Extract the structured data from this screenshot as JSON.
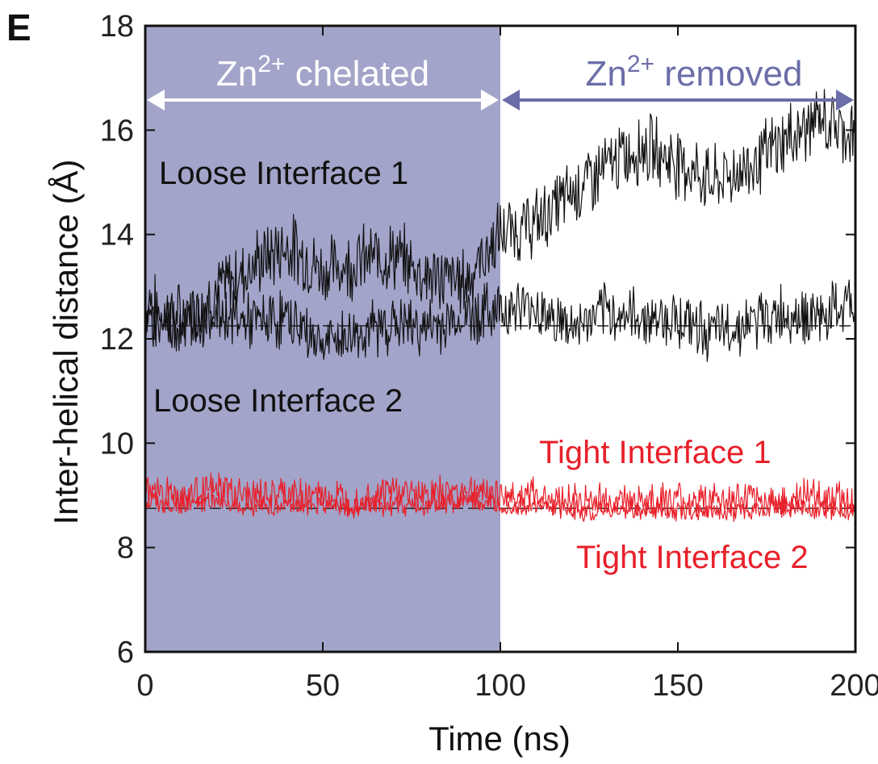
{
  "chart_data": {
    "type": "line",
    "panel_label": "E",
    "xlabel": "Time (ns)",
    "ylabel": "Inter-helical distance (Å)",
    "xlim": [
      0,
      200
    ],
    "ylim": [
      6,
      18
    ],
    "x_ticks": [
      "0",
      "50",
      "100",
      "150",
      "200"
    ],
    "y_ticks": [
      "6",
      "8",
      "10",
      "12",
      "14",
      "16",
      "18"
    ],
    "grid": false,
    "shaded_region": {
      "x": [
        0,
        100
      ],
      "color": "#a3a4c9"
    },
    "regions": [
      {
        "label_base": "Zn",
        "label_sup": "2+",
        "label_rest": " chelated",
        "x": [
          0,
          100
        ],
        "color": "#ffffff"
      },
      {
        "label_base": "Zn",
        "label_sup": "2+",
        "label_rest": " removed",
        "x": [
          100,
          200
        ],
        "color": "#6b6ea8"
      }
    ],
    "reference_lines": [
      {
        "y": 12.25,
        "color": "#222222",
        "style": "dashed"
      },
      {
        "y": 8.75,
        "color": "#222222",
        "style": "dashed"
      }
    ],
    "series": [
      {
        "name": "Loose Interface 1",
        "color": "#111111",
        "x": [
          0,
          10,
          20,
          30,
          40,
          50,
          60,
          70,
          80,
          90,
          100,
          110,
          120,
          130,
          140,
          150,
          160,
          170,
          180,
          190,
          200
        ],
        "values": [
          12.6,
          12.4,
          12.9,
          13.4,
          13.8,
          13.3,
          13.5,
          13.6,
          13.2,
          13.1,
          14.0,
          14.2,
          14.8,
          15.3,
          15.7,
          15.4,
          15.0,
          15.3,
          15.8,
          16.2,
          15.9
        ]
      },
      {
        "name": "Loose Interface 2",
        "color": "#111111",
        "x": [
          0,
          10,
          20,
          30,
          40,
          50,
          60,
          70,
          80,
          90,
          100,
          110,
          120,
          130,
          140,
          150,
          160,
          170,
          180,
          190,
          200
        ],
        "values": [
          12.4,
          12.3,
          12.5,
          12.3,
          12.4,
          11.9,
          12.1,
          12.3,
          12.2,
          12.4,
          12.6,
          12.6,
          12.2,
          12.5,
          12.4,
          12.4,
          12.1,
          12.3,
          12.5,
          12.4,
          12.7
        ]
      },
      {
        "name": "Tight Interface 1",
        "color": "#e8202a",
        "x": [
          0,
          10,
          20,
          30,
          40,
          50,
          60,
          70,
          80,
          90,
          100,
          110,
          120,
          130,
          140,
          150,
          160,
          170,
          180,
          190,
          200
        ],
        "values": [
          9.1,
          9.0,
          9.1,
          9.0,
          9.0,
          9.0,
          8.9,
          9.1,
          9.0,
          9.1,
          9.0,
          9.0,
          8.9,
          8.9,
          8.9,
          8.9,
          8.9,
          8.9,
          8.9,
          9.0,
          8.9
        ]
      },
      {
        "name": "Tight Interface 2",
        "color": "#e8202a",
        "x": [
          0,
          10,
          20,
          30,
          40,
          50,
          60,
          70,
          80,
          90,
          100,
          110,
          120,
          130,
          140,
          150,
          160,
          170,
          180,
          190,
          200
        ],
        "values": [
          8.9,
          8.8,
          8.9,
          8.8,
          8.8,
          8.8,
          8.8,
          8.8,
          8.8,
          8.9,
          8.8,
          8.8,
          8.7,
          8.7,
          8.7,
          8.7,
          8.7,
          8.7,
          8.8,
          8.7,
          8.7
        ]
      }
    ]
  }
}
